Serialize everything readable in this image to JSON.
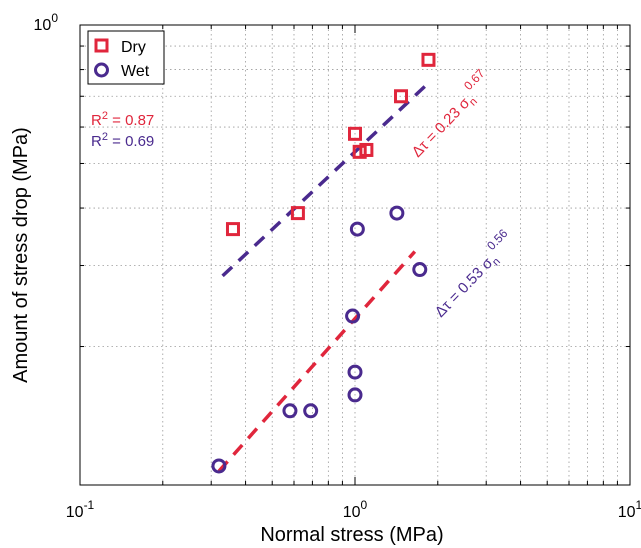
{
  "chart_data": {
    "type": "scatter",
    "xlabel": "Normal stress (MPa)",
    "ylabel": "Amount of stress drop (MPa)",
    "x_scale": "log",
    "y_scale": "log",
    "xlim": [
      0.1,
      10
    ],
    "ylim": [
      0.1,
      1
    ],
    "x_ticks": [
      {
        "base": "10",
        "exp": "-1"
      },
      {
        "base": "10",
        "exp": "0"
      },
      {
        "base": "10",
        "exp": "1"
      }
    ],
    "y_ticks": [
      {
        "base": "10",
        "exp": "0"
      }
    ],
    "grid": true,
    "legend_position": "top-left",
    "series": [
      {
        "name": "Dry",
        "marker": "square",
        "color": "#e0263c",
        "points": [
          {
            "x": 0.36,
            "y": 0.36
          },
          {
            "x": 0.62,
            "y": 0.39
          },
          {
            "x": 1.0,
            "y": 0.58
          },
          {
            "x": 1.04,
            "y": 0.53
          },
          {
            "x": 1.1,
            "y": 0.535
          },
          {
            "x": 1.47,
            "y": 0.7
          },
          {
            "x": 1.85,
            "y": 0.84
          }
        ],
        "fit": {
          "coef": 0.23,
          "exp": 0.67,
          "x_range": [
            0.32,
            1.65
          ]
        },
        "r2_label": "R",
        "r2_sup": "2",
        "r2_value": " = 0.87",
        "eq_prefix": "Δτ = 0.23 σ",
        "eq_sub": "n",
        "eq_exp": "0.67"
      },
      {
        "name": "Wet",
        "marker": "circle",
        "color": "#4a2a8e",
        "points": [
          {
            "x": 0.32,
            "y": 0.11
          },
          {
            "x": 0.58,
            "y": 0.145
          },
          {
            "x": 0.69,
            "y": 0.145
          },
          {
            "x": 0.98,
            "y": 0.233
          },
          {
            "x": 1.0,
            "y": 0.176
          },
          {
            "x": 1.0,
            "y": 0.157
          },
          {
            "x": 1.02,
            "y": 0.36
          },
          {
            "x": 1.42,
            "y": 0.39
          },
          {
            "x": 1.72,
            "y": 0.294
          }
        ],
        "fit": {
          "coef": 0.53,
          "exp": 0.56,
          "x_range": [
            0.33,
            1.8
          ]
        },
        "r2_label": "R",
        "r2_sup": "2",
        "r2_value": " = 0.69",
        "eq_prefix": "Δτ = 0.53 σ",
        "eq_sub": "n",
        "eq_exp": "0.56"
      }
    ]
  }
}
